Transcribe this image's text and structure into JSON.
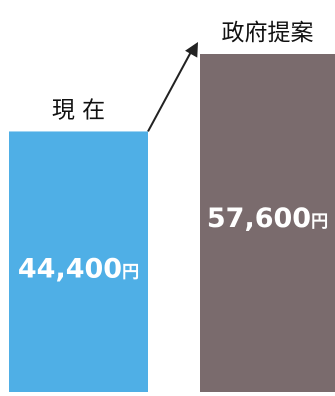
{
  "chart_data": {
    "type": "bar",
    "categories": [
      "現 在",
      "政府提案"
    ],
    "values": [
      44400,
      57600
    ],
    "value_labels": [
      {
        "number": "44,400",
        "unit": "円"
      },
      {
        "number": "57,600",
        "unit": "円"
      }
    ],
    "colors": [
      "#4FAFE6",
      "#7A6B6D"
    ],
    "arrow_color": "#222222",
    "baseline_color": "#ffffff"
  }
}
